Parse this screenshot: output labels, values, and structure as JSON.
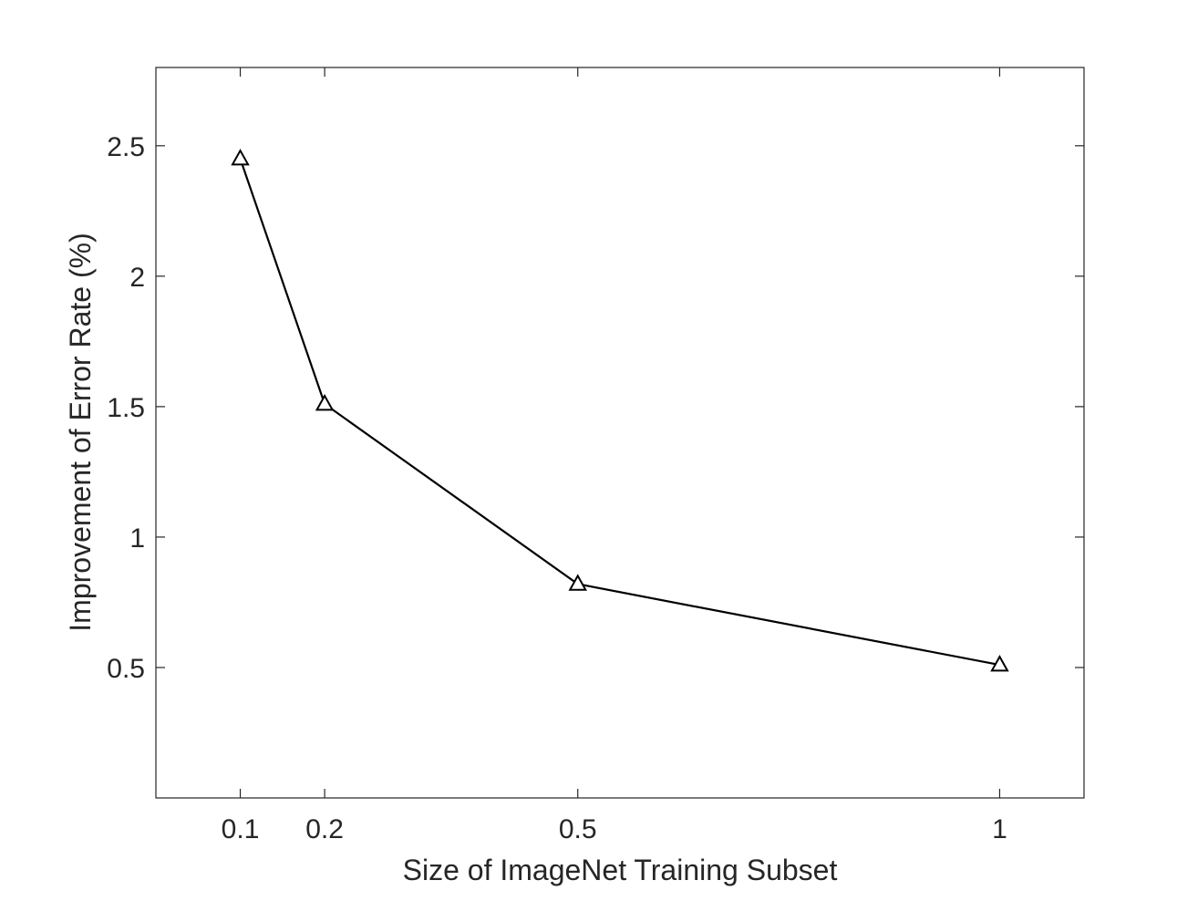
{
  "chart_data": {
    "type": "line",
    "title": "",
    "xlabel": "Size of ImageNet Training Subset",
    "ylabel": "Improvement of Error Rate (%)",
    "x": [
      0.1,
      0.2,
      0.5,
      1
    ],
    "series": [
      {
        "values": [
          2.45,
          1.51,
          0.82,
          0.51
        ]
      }
    ],
    "marker": "triangle",
    "line_color": "#000000",
    "xlim": [
      0,
      1.1
    ],
    "ylim": [
      0,
      2.8
    ],
    "xticks": [
      0.1,
      0.2,
      0.5,
      1
    ],
    "xtick_labels": [
      "0.1",
      "0.2",
      "0.5",
      "1"
    ],
    "yticks": [
      0.5,
      1,
      1.5,
      2,
      2.5
    ],
    "ytick_labels": [
      "0.5",
      "1",
      "1.5",
      "2",
      "2.5"
    ],
    "grid": false,
    "legend": "none",
    "box": true
  }
}
